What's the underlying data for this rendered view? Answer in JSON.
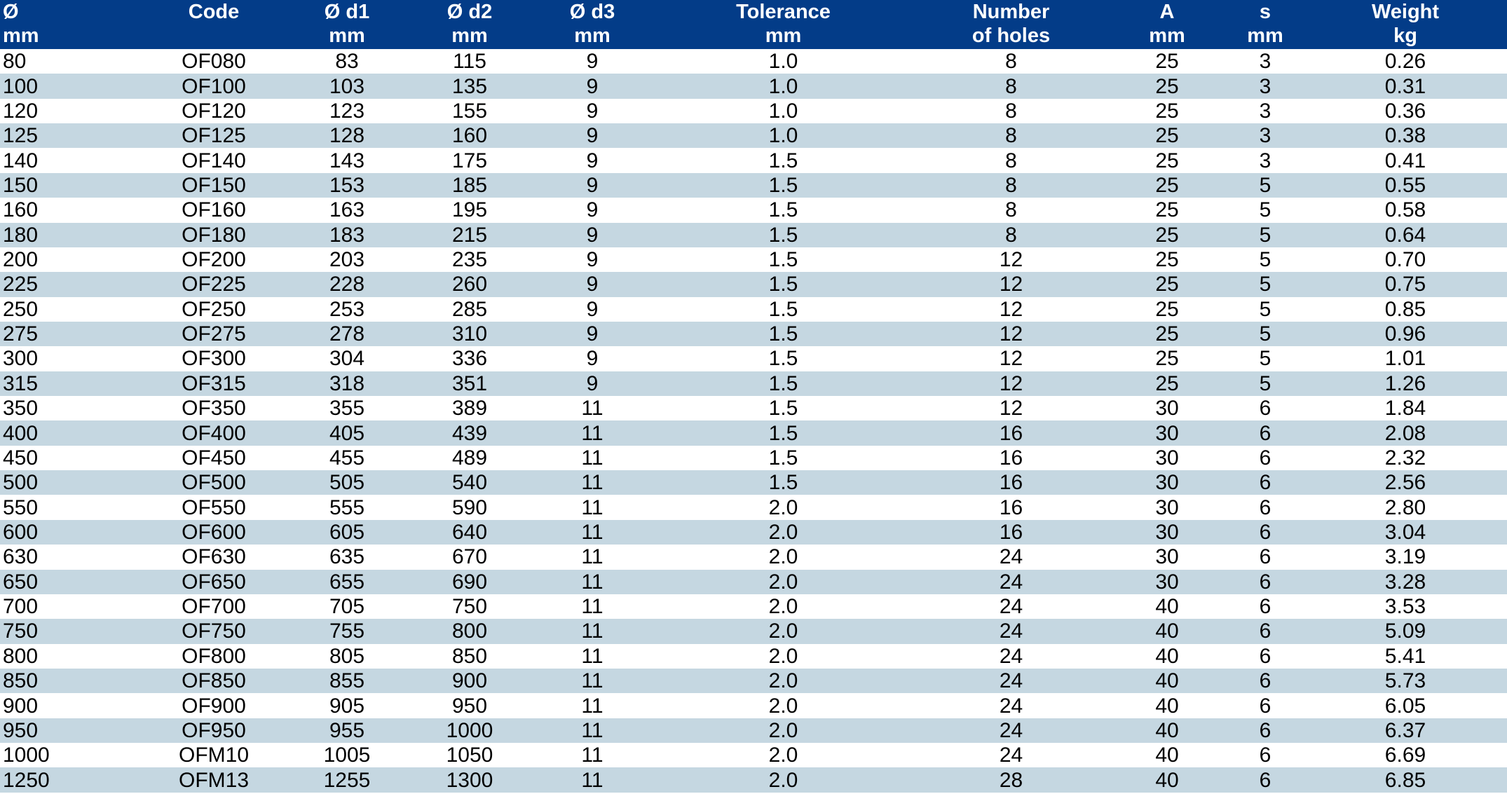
{
  "table": {
    "columns": [
      {
        "line1": "Ø",
        "line2": "mm"
      },
      {
        "line1": "Code",
        "line2": ""
      },
      {
        "line1": "Ø d1",
        "line2": "mm"
      },
      {
        "line1": "Ø d2",
        "line2": "mm"
      },
      {
        "line1": "Ø d3",
        "line2": "mm"
      },
      {
        "line1": "Tolerance",
        "line2": "mm"
      },
      {
        "line1": "Number",
        "line2": "of holes"
      },
      {
        "line1": "A",
        "line2": "mm"
      },
      {
        "line1": "s",
        "line2": "mm"
      },
      {
        "line1": "Weight",
        "line2": "kg"
      }
    ],
    "rows": [
      [
        "80",
        "OF080",
        "83",
        "115",
        "9",
        "1.0",
        "8",
        "25",
        "3",
        "0.26"
      ],
      [
        "100",
        "OF100",
        "103",
        "135",
        "9",
        "1.0",
        "8",
        "25",
        "3",
        "0.31"
      ],
      [
        "120",
        "OF120",
        "123",
        "155",
        "9",
        "1.0",
        "8",
        "25",
        "3",
        "0.36"
      ],
      [
        "125",
        "OF125",
        "128",
        "160",
        "9",
        "1.0",
        "8",
        "25",
        "3",
        "0.38"
      ],
      [
        "140",
        "OF140",
        "143",
        "175",
        "9",
        "1.5",
        "8",
        "25",
        "3",
        "0.41"
      ],
      [
        "150",
        "OF150",
        "153",
        "185",
        "9",
        "1.5",
        "8",
        "25",
        "5",
        "0.55"
      ],
      [
        "160",
        "OF160",
        "163",
        "195",
        "9",
        "1.5",
        "8",
        "25",
        "5",
        "0.58"
      ],
      [
        "180",
        "OF180",
        "183",
        "215",
        "9",
        "1.5",
        "8",
        "25",
        "5",
        "0.64"
      ],
      [
        "200",
        "OF200",
        "203",
        "235",
        "9",
        "1.5",
        "12",
        "25",
        "5",
        "0.70"
      ],
      [
        "225",
        "OF225",
        "228",
        "260",
        "9",
        "1.5",
        "12",
        "25",
        "5",
        "0.75"
      ],
      [
        "250",
        "OF250",
        "253",
        "285",
        "9",
        "1.5",
        "12",
        "25",
        "5",
        "0.85"
      ],
      [
        "275",
        "OF275",
        "278",
        "310",
        "9",
        "1.5",
        "12",
        "25",
        "5",
        "0.96"
      ],
      [
        "300",
        "OF300",
        "304",
        "336",
        "9",
        "1.5",
        "12",
        "25",
        "5",
        "1.01"
      ],
      [
        "315",
        "OF315",
        "318",
        "351",
        "9",
        "1.5",
        "12",
        "25",
        "5",
        "1.26"
      ],
      [
        "350",
        "OF350",
        "355",
        "389",
        "11",
        "1.5",
        "12",
        "30",
        "6",
        "1.84"
      ],
      [
        "400",
        "OF400",
        "405",
        "439",
        "11",
        "1.5",
        "16",
        "30",
        "6",
        "2.08"
      ],
      [
        "450",
        "OF450",
        "455",
        "489",
        "11",
        "1.5",
        "16",
        "30",
        "6",
        "2.32"
      ],
      [
        "500",
        "OF500",
        "505",
        "540",
        "11",
        "1.5",
        "16",
        "30",
        "6",
        "2.56"
      ],
      [
        "550",
        "OF550",
        "555",
        "590",
        "11",
        "2.0",
        "16",
        "30",
        "6",
        "2.80"
      ],
      [
        "600",
        "OF600",
        "605",
        "640",
        "11",
        "2.0",
        "16",
        "30",
        "6",
        "3.04"
      ],
      [
        "630",
        "OF630",
        "635",
        "670",
        "11",
        "2.0",
        "24",
        "30",
        "6",
        "3.19"
      ],
      [
        "650",
        "OF650",
        "655",
        "690",
        "11",
        "2.0",
        "24",
        "30",
        "6",
        "3.28"
      ],
      [
        "700",
        "OF700",
        "705",
        "750",
        "11",
        "2.0",
        "24",
        "40",
        "6",
        "3.53"
      ],
      [
        "750",
        "OF750",
        "755",
        "800",
        "11",
        "2.0",
        "24",
        "40",
        "6",
        "5.09"
      ],
      [
        "800",
        "OF800",
        "805",
        "850",
        "11",
        "2.0",
        "24",
        "40",
        "6",
        "5.41"
      ],
      [
        "850",
        "OF850",
        "855",
        "900",
        "11",
        "2.0",
        "24",
        "40",
        "6",
        "5.73"
      ],
      [
        "900",
        "OF900",
        "905",
        "950",
        "11",
        "2.0",
        "24",
        "40",
        "6",
        "6.05"
      ],
      [
        "950",
        "OF950",
        "955",
        "1000",
        "11",
        "2.0",
        "24",
        "40",
        "6",
        "6.37"
      ],
      [
        "1000",
        "OFM10",
        "1005",
        "1050",
        "11",
        "2.0",
        "24",
        "40",
        "6",
        "6.69"
      ],
      [
        "1250",
        "OFM13",
        "1255",
        "1300",
        "11",
        "2.0",
        "28",
        "40",
        "6",
        "6.85"
      ]
    ],
    "colors": {
      "header_bg": "#033c88",
      "header_text": "#ffffff",
      "row_alt_bg": "#c5d7e1",
      "row_bg": "#ffffff"
    }
  }
}
